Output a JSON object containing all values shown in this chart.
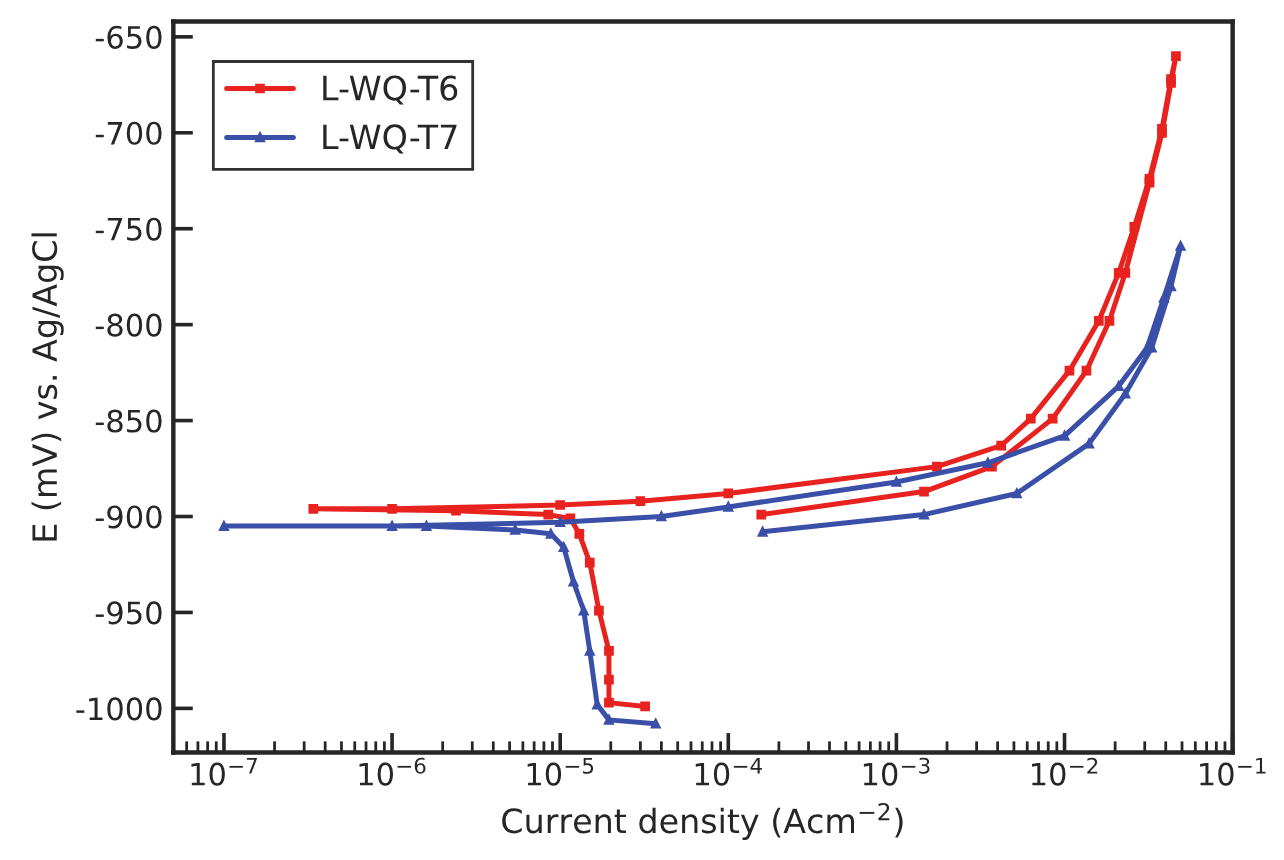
{
  "chart_data": {
    "type": "line",
    "xlabel": "Current density (Acm$^{−2}$)",
    "ylabel": "E (mV) vs. Ag/AgCl",
    "log": "x",
    "xlim": [
      5e-08,
      0.1
    ],
    "xticks": [
      {
        "value": 1e-07,
        "label": "10$^{−7}$"
      },
      {
        "value": 1e-06,
        "label": "10$^{−6}$"
      },
      {
        "value": 1e-05,
        "label": "10$^{−5}$"
      },
      {
        "value": 0.0001,
        "label": "10$^{−4}$"
      },
      {
        "value": 0.001,
        "label": "10$^{−3}$"
      },
      {
        "value": 0.01,
        "label": "10$^{−2}$"
      },
      {
        "value": 0.1,
        "label": "10$^{−1}$"
      }
    ],
    "ylim": [
      -1023,
      -642
    ],
    "yticks": [
      -650,
      -700,
      -750,
      -800,
      -850,
      -900,
      -950,
      -1000
    ],
    "grid": false,
    "legend": "top left",
    "line_style": "solid",
    "series": [
      {
        "name": "L-WQ-T6",
        "color": "#e8231f",
        "marker": "square",
        "x": [
          3.2e-05,
          1.95e-05,
          1.95e-05,
          1.95e-05,
          1.7e-05,
          1.5e-05,
          1.3e-05,
          1.15e-05,
          8.5e-06,
          2.4e-06,
          3.4e-07,
          1e-06,
          1e-05,
          3e-05,
          0.0001,
          0.00174,
          0.0042,
          0.0063,
          0.0107,
          0.016,
          0.021,
          0.026,
          0.032,
          0.038,
          0.043,
          0.046,
          0.043,
          0.038,
          0.032,
          0.023,
          0.0185,
          0.0135,
          0.0085,
          0.0037,
          0.00146,
          0.000157
        ],
        "values": [
          -999,
          -997,
          -985,
          -970,
          -949,
          -924,
          -909,
          -901,
          -899,
          -897,
          -896,
          -896,
          -894,
          -892,
          -888,
          -874,
          -863,
          -849,
          -824,
          -798,
          -773,
          -749,
          -724,
          -698,
          -672,
          -660,
          -674,
          -700,
          -726,
          -773,
          -798,
          -824,
          -849,
          -874,
          -887,
          -899
        ]
      },
      {
        "name": "L-WQ-T7",
        "color": "#3a4fa8",
        "marker": "triangle",
        "x": [
          3.7e-05,
          1.95e-05,
          1.66e-05,
          1.5e-05,
          1.38e-05,
          1.2e-05,
          1.05e-05,
          8.8e-06,
          5.4e-06,
          1.6e-06,
          1e-07,
          1e-06,
          1e-05,
          4e-05,
          0.0001,
          0.001,
          0.0035,
          0.01,
          0.021,
          0.031,
          0.039,
          0.049,
          0.043,
          0.033,
          0.023,
          0.014,
          0.0052,
          0.00146,
          0.00016
        ],
        "values": [
          -1008,
          -1006,
          -998,
          -970,
          -949,
          -934,
          -916,
          -909,
          -907,
          -905,
          -905,
          -905,
          -903,
          -900,
          -895,
          -882,
          -872,
          -858,
          -832,
          -812,
          -786,
          -759,
          -780,
          -812,
          -836,
          -862,
          -888,
          -899,
          -908
        ]
      }
    ]
  }
}
